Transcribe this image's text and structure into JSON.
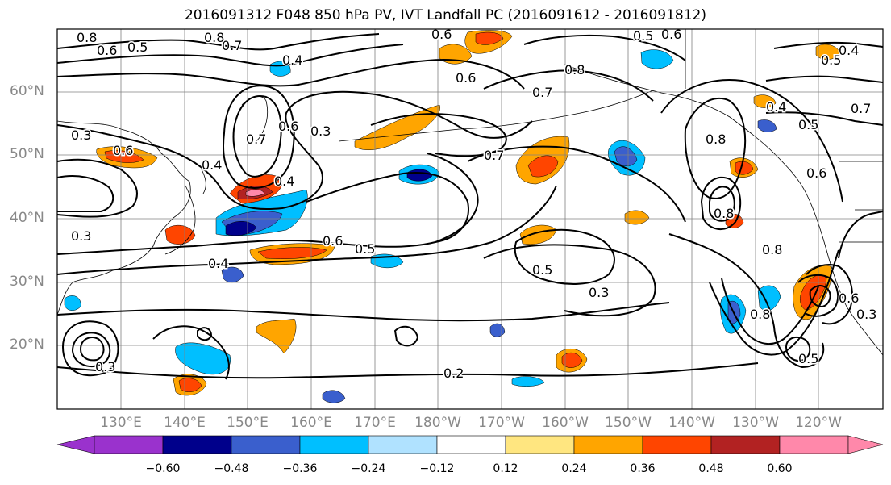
{
  "title": "2016091312 F048 850 hPa PV, IVT Landfall PC (2016091612 - 2016091812)",
  "map": {
    "lat_labels": [
      "60°N",
      "50°N",
      "40°N",
      "30°N",
      "20°N"
    ],
    "lon_labels": [
      "130°E",
      "140°E",
      "150°E",
      "160°E",
      "170°E",
      "180°W",
      "170°W",
      "160°W",
      "150°W",
      "140°W",
      "130°W",
      "120°W"
    ],
    "contour_labels": [
      "0.8",
      "0.6",
      "0.5",
      "0.7",
      "0.8",
      "0.6",
      "0.5",
      "0.6",
      "0.4",
      "0.5",
      "0.4",
      "0.3",
      "0.6",
      "0.6",
      "0.7",
      "0.6",
      "0.3",
      "0.8",
      "0.7",
      "0.7",
      "0.4",
      "0.4",
      "0.8",
      "0.6",
      "0.5",
      "0.3",
      "0.4",
      "0.6",
      "0.5",
      "0.4",
      "0.5",
      "0.3",
      "0.8",
      "0.7",
      "0.2",
      "0.8",
      "0.5",
      "0.8",
      "0.6",
      "0.3",
      "0.3"
    ],
    "colors": {
      "ocean": "#ffffff",
      "contour": "#000000",
      "grid": "#808080",
      "coast": "#000000"
    }
  },
  "colorbar": {
    "ticks": [
      "−0.60",
      "−0.48",
      "−0.36",
      "−0.24",
      "−0.12",
      "0.12",
      "0.24",
      "0.36",
      "0.48",
      "0.60"
    ],
    "colors": [
      "#9a32cd",
      "#00008b",
      "#3a5fcd",
      "#00bfff",
      "#b0e2ff",
      "#ffffff",
      "#ffe680",
      "#ffa500",
      "#ff4500",
      "#b22222",
      "#ff88aa"
    ]
  }
}
